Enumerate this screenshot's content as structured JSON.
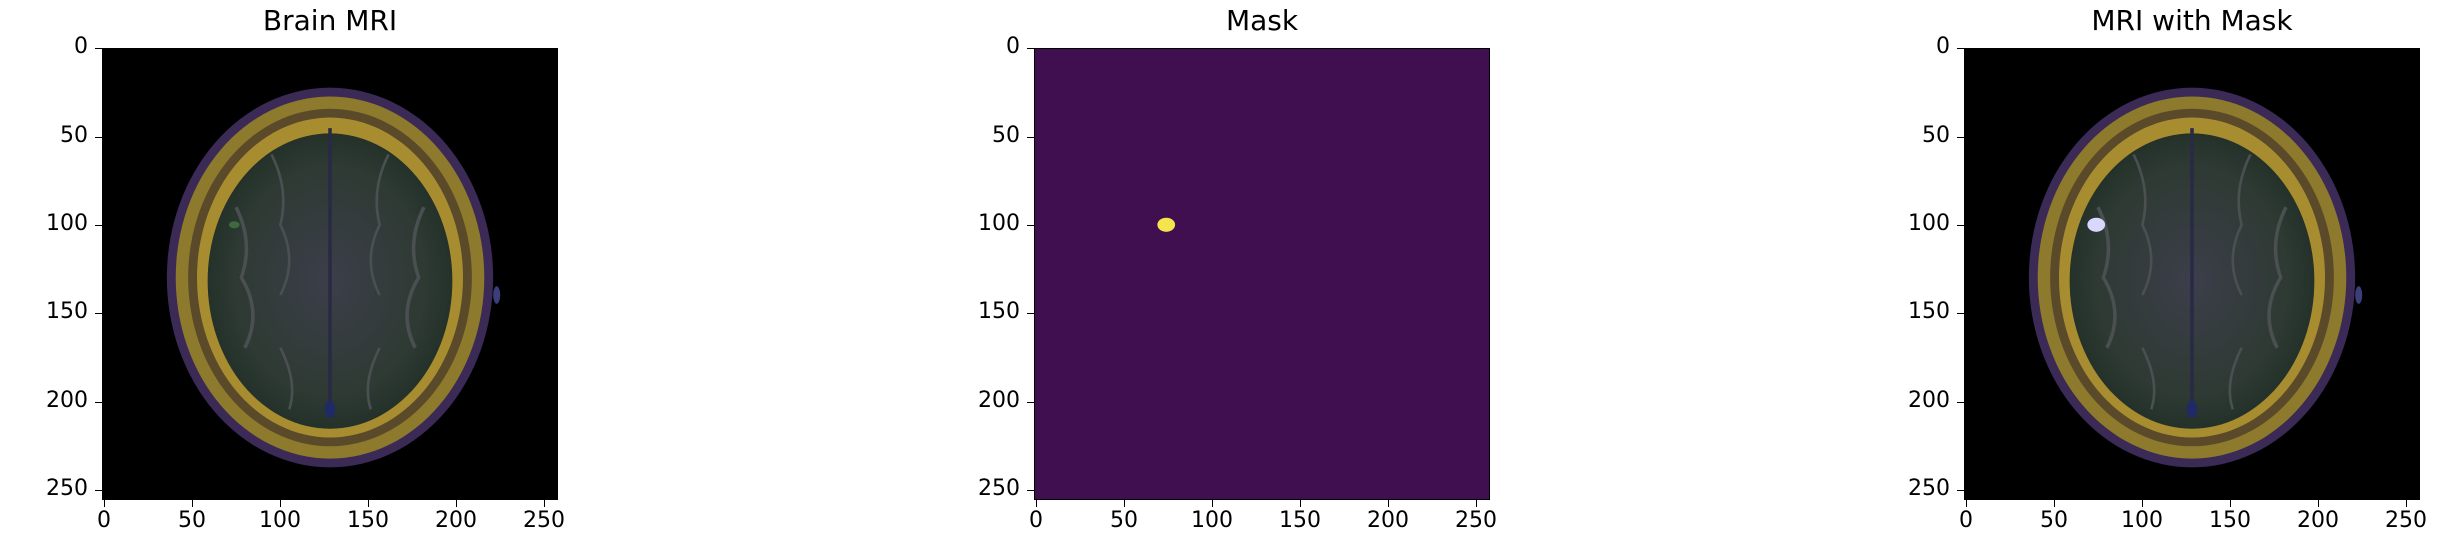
{
  "figure": {
    "panels": [
      {
        "title": "Brain MRI",
        "image": "brain-mri-scan"
      },
      {
        "title": "Mask",
        "image": "tumor-mask"
      },
      {
        "title": "MRI with Mask",
        "image": "brain-mri-scan-with-mask-overlay"
      }
    ],
    "y_ticks": [
      "0",
      "50",
      "100",
      "150",
      "200",
      "250"
    ],
    "x_ticks": [
      "0",
      "50",
      "100",
      "150",
      "200",
      "250"
    ],
    "colors": {
      "mask_background": "#3f0f4f",
      "mask_foreground": "#f5e44c",
      "overlay_highlight": "#d8d8ff",
      "mri_background": "#000000"
    }
  }
}
